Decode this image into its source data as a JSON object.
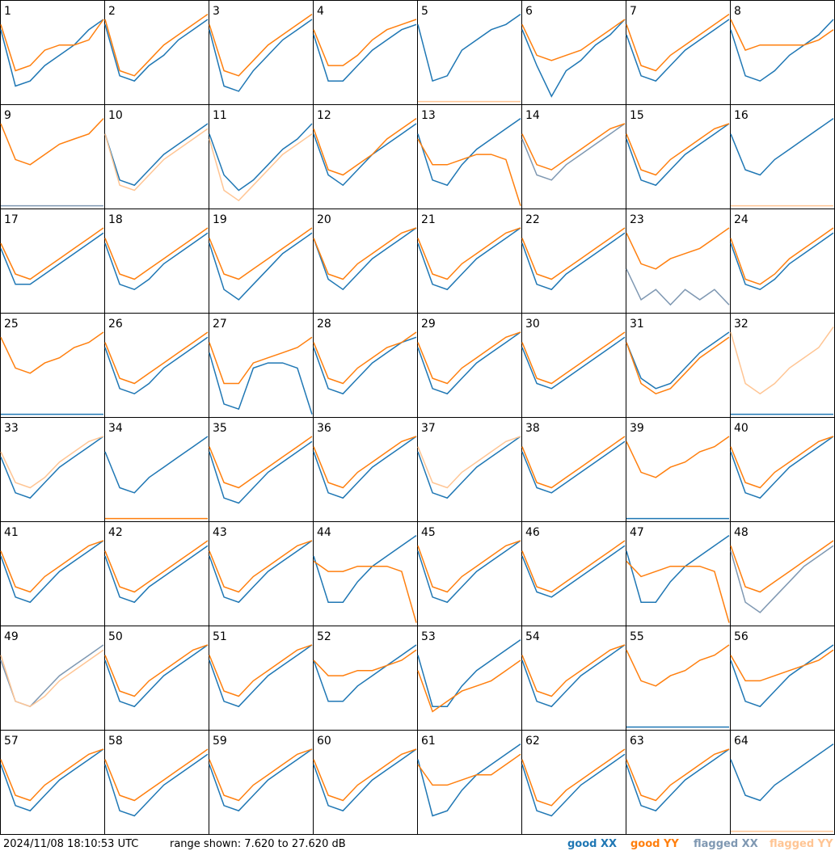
{
  "ylim": [
    {
      "value": 7.62,
      "label": "7.620"
    },
    {
      "value": 27.62,
      "label": "27.620"
    }
  ],
  "timestamp": "2024/11/08 18:10:53 UTC",
  "range_prefix": "range shown:",
  "range_joiner": "to",
  "unit": "dB",
  "legend": [
    {
      "text": "good XX",
      "color": "#1f77b4"
    },
    {
      "text": "good YY",
      "color": "#ff7f0e"
    },
    {
      "text": "flagged XX",
      "color": "#7f98b2"
    },
    {
      "text": "flagged YY",
      "color": "#ffc594"
    }
  ],
  "panels": [
    {
      "label": 1,
      "xx": [
        22,
        11,
        12,
        15,
        17,
        19,
        22,
        24
      ],
      "yy": [
        23,
        14,
        15,
        18,
        19,
        19,
        20,
        24
      ]
    },
    {
      "label": 2,
      "xx": [
        23,
        13,
        12,
        15,
        17,
        20,
        22,
        24
      ],
      "yy": [
        24,
        14,
        13,
        16,
        19,
        21,
        23,
        25
      ]
    },
    {
      "label": 3,
      "xx": [
        22,
        11,
        10,
        14,
        17,
        20,
        22,
        24
      ],
      "yy": [
        23,
        14,
        13,
        16,
        19,
        21,
        23,
        25
      ]
    },
    {
      "label": 4,
      "xx": [
        21,
        12,
        12,
        15,
        18,
        20,
        22,
        23
      ],
      "yy": [
        22,
        15,
        15,
        17,
        20,
        22,
        23,
        24
      ]
    },
    {
      "label": 5,
      "xx": [
        23,
        12,
        13,
        18,
        20,
        22,
        23,
        25
      ],
      "yy": [
        8,
        8,
        8,
        8,
        8,
        8,
        8,
        8
      ],
      "flagged": [
        "yy"
      ]
    },
    {
      "label": 6,
      "xx": [
        22,
        15,
        9,
        14,
        16,
        19,
        21,
        24
      ],
      "yy": [
        23,
        17,
        16,
        17,
        18,
        20,
        22,
        24
      ]
    },
    {
      "label": 7,
      "xx": [
        21,
        13,
        12,
        15,
        18,
        20,
        22,
        24
      ],
      "yy": [
        23,
        15,
        14,
        17,
        19,
        21,
        23,
        25
      ]
    },
    {
      "label": 8,
      "xx": [
        22,
        13,
        12,
        14,
        17,
        19,
        21,
        24
      ],
      "yy": [
        24,
        18,
        19,
        19,
        19,
        19,
        20,
        22
      ]
    },
    {
      "label": 9,
      "xx": [
        8,
        8,
        8,
        8,
        8,
        8,
        8,
        8
      ],
      "yy": [
        24,
        17,
        16,
        18,
        20,
        21,
        22,
        25
      ],
      "flagged": [
        "xx"
      ]
    },
    {
      "label": 10,
      "xx": [
        22,
        13,
        12,
        15,
        18,
        20,
        22,
        24
      ],
      "yy": [
        22,
        12,
        11,
        14,
        17,
        19,
        21,
        23
      ],
      "flagged": [
        "yy"
      ]
    },
    {
      "label": 11,
      "xx": [
        22,
        14,
        11,
        13,
        16,
        19,
        21,
        24
      ],
      "yy": [
        21,
        11,
        9,
        12,
        15,
        18,
        20,
        22
      ],
      "flagged": [
        "yy"
      ]
    },
    {
      "label": 12,
      "xx": [
        22,
        14,
        12,
        15,
        18,
        20,
        22,
        24
      ],
      "yy": [
        23,
        15,
        14,
        16,
        18,
        21,
        23,
        25
      ]
    },
    {
      "label": 13,
      "xx": [
        22,
        13,
        12,
        16,
        19,
        21,
        23,
        25
      ],
      "yy": [
        21,
        16,
        16,
        17,
        18,
        18,
        17,
        8
      ]
    },
    {
      "label": 14,
      "xx": [
        21,
        14,
        13,
        16,
        18,
        20,
        22,
        24
      ],
      "yy": [
        22,
        16,
        15,
        17,
        19,
        21,
        23,
        24
      ],
      "flagged": [
        "xx"
      ]
    },
    {
      "label": 15,
      "xx": [
        21,
        13,
        12,
        15,
        18,
        20,
        22,
        24
      ],
      "yy": [
        22,
        15,
        14,
        17,
        19,
        21,
        23,
        24
      ]
    },
    {
      "label": 16,
      "xx": [
        22,
        15,
        14,
        17,
        19,
        21,
        23,
        25
      ],
      "yy": [
        8,
        8,
        8,
        8,
        8,
        8,
        8,
        8
      ],
      "flagged": [
        "yy"
      ]
    },
    {
      "label": 17,
      "xx": [
        20,
        13,
        13,
        15,
        17,
        19,
        21,
        23
      ],
      "yy": [
        21,
        15,
        14,
        16,
        18,
        20,
        22,
        24
      ]
    },
    {
      "label": 18,
      "xx": [
        21,
        13,
        12,
        14,
        17,
        19,
        21,
        23
      ],
      "yy": [
        22,
        15,
        14,
        16,
        18,
        20,
        22,
        24
      ]
    },
    {
      "label": 19,
      "xx": [
        21,
        12,
        10,
        13,
        16,
        19,
        21,
        23
      ],
      "yy": [
        22,
        15,
        14,
        16,
        18,
        20,
        22,
        24
      ]
    },
    {
      "label": 20,
      "xx": [
        22,
        14,
        12,
        15,
        18,
        20,
        22,
        24
      ],
      "yy": [
        22,
        15,
        14,
        17,
        19,
        21,
        23,
        24
      ]
    },
    {
      "label": 21,
      "xx": [
        21,
        13,
        12,
        15,
        18,
        20,
        22,
        24
      ],
      "yy": [
        22,
        15,
        14,
        17,
        19,
        21,
        23,
        24
      ]
    },
    {
      "label": 22,
      "xx": [
        21,
        13,
        12,
        15,
        17,
        19,
        21,
        23
      ],
      "yy": [
        22,
        15,
        14,
        16,
        18,
        20,
        22,
        24
      ]
    },
    {
      "label": 23,
      "xx": [
        16,
        10,
        12,
        9,
        12,
        10,
        12,
        9
      ],
      "yy": [
        23,
        17,
        16,
        18,
        19,
        20,
        22,
        24
      ],
      "flagged": [
        "xx"
      ]
    },
    {
      "label": 24,
      "xx": [
        21,
        13,
        12,
        14,
        17,
        19,
        21,
        23
      ],
      "yy": [
        22,
        14,
        13,
        15,
        18,
        20,
        22,
        24
      ]
    },
    {
      "label": 25,
      "xx": [
        8,
        8,
        8,
        8,
        8,
        8,
        8,
        8
      ],
      "yy": [
        23,
        17,
        16,
        18,
        19,
        21,
        22,
        24
      ]
    },
    {
      "label": 26,
      "xx": [
        21,
        13,
        12,
        14,
        17,
        19,
        21,
        23
      ],
      "yy": [
        22,
        15,
        14,
        16,
        18,
        20,
        22,
        24
      ]
    },
    {
      "label": 27,
      "xx": [
        20,
        10,
        9,
        17,
        18,
        18,
        17,
        8
      ],
      "yy": [
        22,
        14,
        14,
        18,
        19,
        20,
        21,
        23
      ]
    },
    {
      "label": 28,
      "xx": [
        21,
        13,
        12,
        15,
        18,
        20,
        22,
        23
      ],
      "yy": [
        22,
        15,
        14,
        17,
        19,
        21,
        22,
        24
      ]
    },
    {
      "label": 29,
      "xx": [
        21,
        13,
        12,
        15,
        18,
        20,
        22,
        24
      ],
      "yy": [
        22,
        15,
        14,
        17,
        19,
        21,
        23,
        24
      ]
    },
    {
      "label": 30,
      "xx": [
        21,
        14,
        13,
        15,
        17,
        19,
        21,
        23
      ],
      "yy": [
        22,
        15,
        14,
        16,
        18,
        20,
        22,
        24
      ]
    },
    {
      "label": 31,
      "xx": [
        22,
        15,
        13,
        14,
        17,
        20,
        22,
        24
      ],
      "yy": [
        22,
        14,
        12,
        13,
        16,
        19,
        21,
        23
      ]
    },
    {
      "label": 32,
      "xx": [
        8,
        8,
        8,
        8,
        8,
        8,
        8,
        8
      ],
      "yy": [
        24,
        14,
        12,
        14,
        17,
        19,
        21,
        25
      ],
      "flagged": [
        "yy"
      ]
    },
    {
      "label": 33,
      "xx": [
        20,
        13,
        12,
        15,
        18,
        20,
        22,
        24
      ],
      "yy": [
        21,
        15,
        14,
        16,
        19,
        21,
        23,
        24
      ],
      "flagged": [
        "yy"
      ]
    },
    {
      "label": 34,
      "xx": [
        21,
        14,
        13,
        16,
        18,
        20,
        22,
        24
      ],
      "yy": [
        8,
        8,
        8,
        8,
        8,
        8,
        8,
        8
      ]
    },
    {
      "label": 35,
      "xx": [
        21,
        12,
        11,
        14,
        17,
        19,
        21,
        23
      ],
      "yy": [
        22,
        15,
        14,
        16,
        18,
        20,
        22,
        24
      ]
    },
    {
      "label": 36,
      "xx": [
        21,
        13,
        12,
        15,
        18,
        20,
        22,
        24
      ],
      "yy": [
        22,
        15,
        14,
        17,
        19,
        21,
        23,
        24
      ]
    },
    {
      "label": 37,
      "xx": [
        21,
        13,
        12,
        15,
        18,
        20,
        22,
        24
      ],
      "yy": [
        22,
        15,
        14,
        17,
        19,
        21,
        23,
        24
      ],
      "flagged": [
        "yy"
      ]
    },
    {
      "label": 38,
      "xx": [
        21,
        14,
        13,
        15,
        17,
        19,
        21,
        23
      ],
      "yy": [
        22,
        15,
        14,
        16,
        18,
        20,
        22,
        24
      ]
    },
    {
      "label": 39,
      "xx": [
        8,
        8,
        8,
        8,
        8,
        8,
        8,
        8
      ],
      "yy": [
        23,
        17,
        16,
        18,
        19,
        21,
        22,
        24
      ]
    },
    {
      "label": 40,
      "xx": [
        21,
        13,
        12,
        15,
        18,
        20,
        22,
        24
      ],
      "yy": [
        22,
        15,
        14,
        17,
        19,
        21,
        23,
        24
      ]
    },
    {
      "label": 41,
      "xx": [
        21,
        13,
        12,
        15,
        18,
        20,
        22,
        24
      ],
      "yy": [
        22,
        15,
        14,
        17,
        19,
        21,
        23,
        24
      ]
    },
    {
      "label": 42,
      "xx": [
        21,
        13,
        12,
        15,
        17,
        19,
        21,
        23
      ],
      "yy": [
        22,
        15,
        14,
        16,
        18,
        20,
        22,
        24
      ]
    },
    {
      "label": 43,
      "xx": [
        21,
        13,
        12,
        15,
        18,
        20,
        22,
        24
      ],
      "yy": [
        22,
        15,
        14,
        17,
        19,
        21,
        23,
        24
      ]
    },
    {
      "label": 44,
      "xx": [
        21,
        12,
        12,
        16,
        19,
        21,
        23,
        25
      ],
      "yy": [
        20,
        18,
        18,
        19,
        19,
        19,
        18,
        8
      ]
    },
    {
      "label": 45,
      "xx": [
        22,
        13,
        12,
        15,
        18,
        20,
        22,
        24
      ],
      "yy": [
        23,
        15,
        14,
        17,
        19,
        21,
        23,
        24
      ]
    },
    {
      "label": 46,
      "xx": [
        21,
        14,
        13,
        15,
        17,
        19,
        21,
        23
      ],
      "yy": [
        22,
        15,
        14,
        16,
        18,
        20,
        22,
        24
      ]
    },
    {
      "label": 47,
      "xx": [
        22,
        12,
        12,
        16,
        19,
        21,
        23,
        25
      ],
      "yy": [
        20,
        17,
        18,
        19,
        19,
        19,
        18,
        8
      ]
    },
    {
      "label": 48,
      "xx": [
        22,
        12,
        10,
        13,
        16,
        19,
        21,
        23
      ],
      "yy": [
        23,
        15,
        14,
        16,
        18,
        20,
        22,
        24
      ],
      "flagged": [
        "xx"
      ]
    },
    {
      "label": 49,
      "xx": [
        21,
        13,
        12,
        15,
        18,
        20,
        22,
        24
      ],
      "yy": [
        22,
        13,
        12,
        14,
        17,
        19,
        21,
        23
      ],
      "flagged": [
        "xx",
        "yy"
      ]
    },
    {
      "label": 50,
      "xx": [
        21,
        13,
        12,
        15,
        18,
        20,
        22,
        24
      ],
      "yy": [
        22,
        15,
        14,
        17,
        19,
        21,
        23,
        24
      ]
    },
    {
      "label": 51,
      "xx": [
        21,
        13,
        12,
        15,
        18,
        20,
        22,
        24
      ],
      "yy": [
        22,
        15,
        14,
        17,
        19,
        21,
        23,
        24
      ]
    },
    {
      "label": 52,
      "xx": [
        21,
        13,
        13,
        16,
        18,
        20,
        22,
        24
      ],
      "yy": [
        21,
        18,
        18,
        19,
        19,
        20,
        21,
        23
      ]
    },
    {
      "label": 53,
      "xx": [
        22,
        12,
        12,
        16,
        19,
        21,
        23,
        25
      ],
      "yy": [
        19,
        11,
        13,
        15,
        16,
        17,
        19,
        21
      ]
    },
    {
      "label": 54,
      "xx": [
        21,
        13,
        12,
        15,
        18,
        20,
        22,
        24
      ],
      "yy": [
        22,
        15,
        14,
        17,
        19,
        21,
        23,
        24
      ]
    },
    {
      "label": 55,
      "xx": [
        8,
        8,
        8,
        8,
        8,
        8,
        8,
        8
      ],
      "yy": [
        23,
        17,
        16,
        18,
        19,
        21,
        22,
        24
      ]
    },
    {
      "label": 56,
      "xx": [
        21,
        13,
        12,
        15,
        18,
        20,
        22,
        24
      ],
      "yy": [
        22,
        17,
        17,
        18,
        19,
        20,
        21,
        23
      ]
    },
    {
      "label": 57,
      "xx": [
        21,
        13,
        12,
        15,
        18,
        20,
        22,
        24
      ],
      "yy": [
        22,
        15,
        14,
        17,
        19,
        21,
        23,
        24
      ]
    },
    {
      "label": 58,
      "xx": [
        21,
        12,
        11,
        14,
        17,
        19,
        21,
        23
      ],
      "yy": [
        22,
        15,
        14,
        16,
        18,
        20,
        22,
        24
      ]
    },
    {
      "label": 59,
      "xx": [
        21,
        13,
        12,
        15,
        18,
        20,
        22,
        24
      ],
      "yy": [
        22,
        15,
        14,
        17,
        19,
        21,
        23,
        24
      ]
    },
    {
      "label": 60,
      "xx": [
        21,
        13,
        12,
        15,
        18,
        20,
        22,
        24
      ],
      "yy": [
        22,
        15,
        14,
        17,
        19,
        21,
        23,
        24
      ]
    },
    {
      "label": 61,
      "xx": [
        22,
        11,
        12,
        16,
        19,
        21,
        23,
        25
      ],
      "yy": [
        21,
        17,
        17,
        18,
        19,
        19,
        21,
        23
      ]
    },
    {
      "label": 62,
      "xx": [
        21,
        12,
        11,
        14,
        17,
        19,
        21,
        23
      ],
      "yy": [
        22,
        14,
        13,
        16,
        18,
        20,
        22,
        24
      ]
    },
    {
      "label": 63,
      "xx": [
        21,
        13,
        12,
        15,
        18,
        20,
        22,
        24
      ],
      "yy": [
        22,
        15,
        14,
        17,
        19,
        21,
        23,
        24
      ]
    },
    {
      "label": 64,
      "xx": [
        22,
        15,
        14,
        17,
        19,
        21,
        23,
        25
      ],
      "yy": [
        8,
        8,
        8,
        8,
        8,
        8,
        8,
        8
      ],
      "flagged": [
        "yy"
      ]
    }
  ]
}
